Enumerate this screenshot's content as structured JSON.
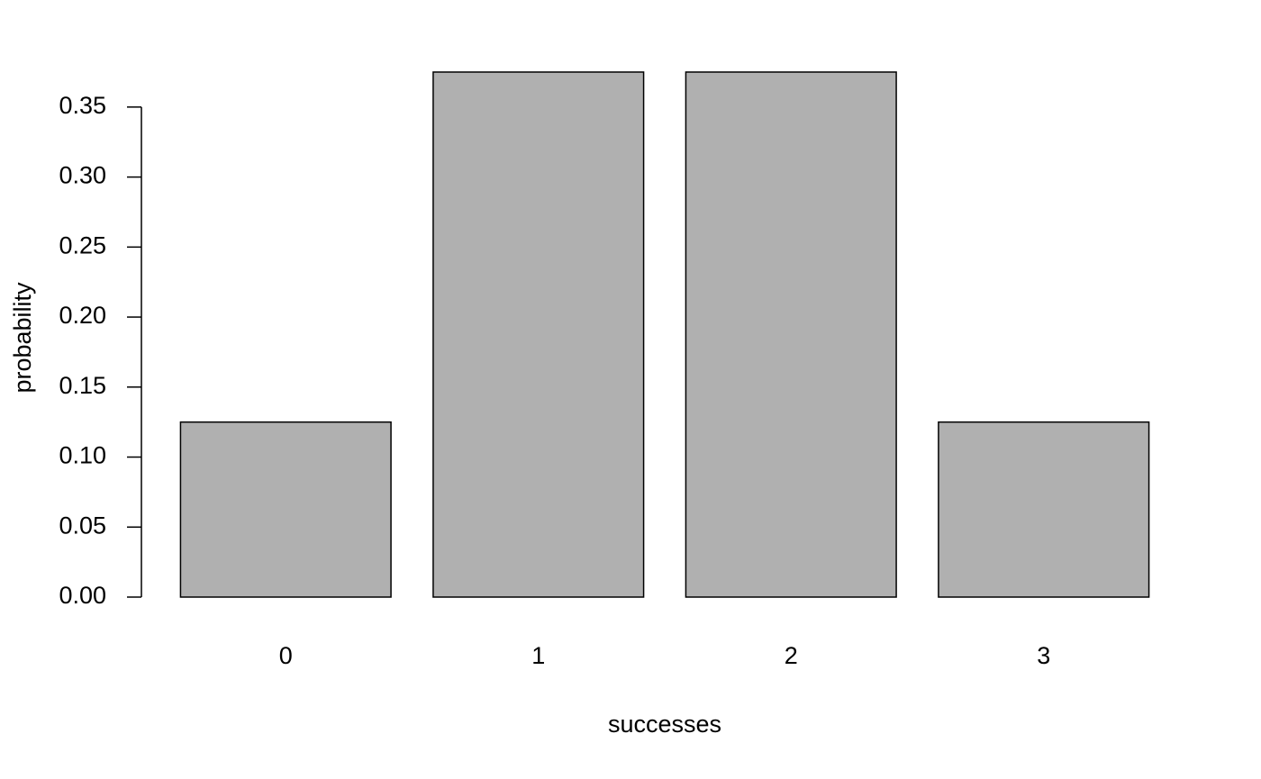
{
  "chart_data": {
    "type": "bar",
    "x_label": "successes",
    "y_label": "probability",
    "categories": [
      "0",
      "1",
      "2",
      "3"
    ],
    "values": [
      0.125,
      0.375,
      0.375,
      0.125
    ],
    "color": "#b0b0b0",
    "ylim": [
      0,
      0.375
    ],
    "yticks": [
      {
        "value": 0,
        "label": "0.00"
      },
      0.05,
      {
        "value": 0.1,
        "label": "0.10"
      },
      0.15,
      {
        "value": 0.2,
        "label": "0.20"
      },
      0.25,
      {
        "value": 0.3,
        "label": "0.30"
      },
      0.35
    ],
    "grid": false
  }
}
